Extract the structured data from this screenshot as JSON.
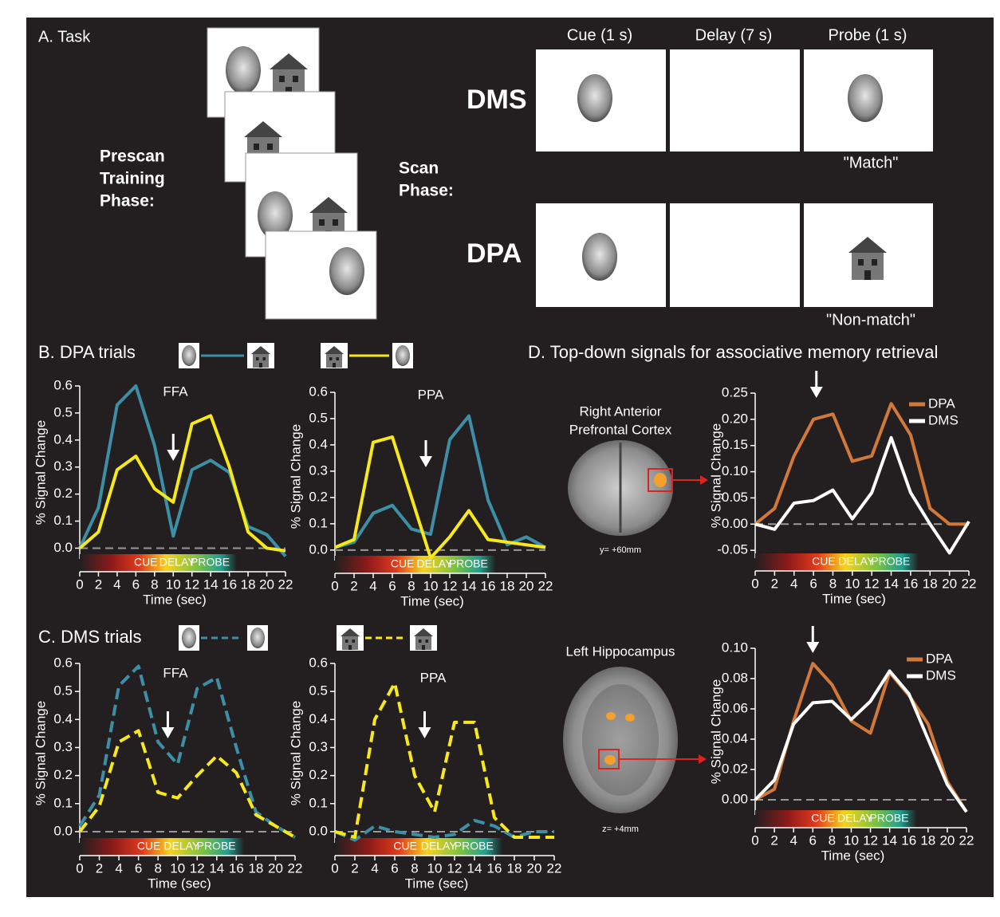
{
  "task": {
    "heading": "A. Task",
    "prescan_label": [
      "Prescan",
      "Training",
      "Phase:"
    ],
    "scan_label": [
      "Scan",
      "Phase:"
    ],
    "columns": [
      "Cue (1 s)",
      "Delay (7 s)",
      "Probe (1 s)"
    ],
    "rows": [
      {
        "label": "DMS",
        "response": "\"Match\""
      },
      {
        "label": "DPA",
        "response": "\"Non-match\""
      }
    ]
  },
  "panels": {
    "b": "B. DPA trials",
    "c": "C. DMS trials",
    "d": "D. Top-down signals for associative memory retrieval"
  },
  "chart_data": [
    {
      "type": "line",
      "title": "FFA",
      "y_label": "% Signal Change",
      "x_label": "Time (sec)",
      "phases": [
        "CUE",
        "DELAY",
        "PROBE"
      ],
      "line_style": "solid",
      "zero_line": true,
      "x": [
        0,
        2,
        4,
        6,
        8,
        10,
        12,
        14,
        16,
        18,
        20,
        22
      ],
      "xlim": [
        0,
        22
      ],
      "xticks": [
        0,
        2,
        4,
        6,
        8,
        10,
        12,
        14,
        16,
        18,
        20,
        22
      ],
      "ylim": [
        -0.04,
        0.6
      ],
      "yticks": [
        {
          "value": 0,
          "label": "0.0"
        },
        0.1,
        0.2,
        0.3,
        0.4,
        0.5,
        0.6
      ],
      "series": [
        {
          "color": "#3d8fa6",
          "values": [
            0,
            0.15,
            0.53,
            0.6,
            0.38,
            0.045,
            0.29,
            0.325,
            0.28,
            0.08,
            0.05,
            -0.03
          ]
        },
        {
          "color": "#f7e81c",
          "values": [
            0,
            0.06,
            0.29,
            0.34,
            0.22,
            0.17,
            0.46,
            0.49,
            0.3,
            0.06,
            0,
            -0.01
          ]
        }
      ]
    },
    {
      "type": "line",
      "title": "PPA",
      "y_label": "% Signal Change",
      "x_label": "Time (sec)",
      "phases": [
        "CUE",
        "DELAY",
        "PROBE"
      ],
      "line_style": "solid",
      "zero_line": true,
      "x": [
        0,
        2,
        4,
        6,
        8,
        10,
        12,
        14,
        16,
        18,
        20,
        22
      ],
      "xlim": [
        0,
        22
      ],
      "xticks": [
        0,
        2,
        4,
        6,
        8,
        10,
        12,
        14,
        16,
        18,
        20,
        22
      ],
      "ylim": [
        -0.04,
        0.6
      ],
      "yticks": [
        {
          "value": 0,
          "label": "0.0"
        },
        0.1,
        0.2,
        0.3,
        0.4,
        0.5,
        0.6
      ],
      "series": [
        {
          "color": "#3d8fa6",
          "values": [
            0.01,
            0.03,
            0.14,
            0.17,
            0.08,
            0.06,
            0.42,
            0.51,
            0.19,
            0.02,
            0.05,
            0.01
          ]
        },
        {
          "color": "#f7e81c",
          "values": [
            0.01,
            0.04,
            0.41,
            0.43,
            0.2,
            -0.03,
            0.05,
            0.15,
            0.04,
            0.03,
            0.02,
            0.01
          ]
        }
      ]
    },
    {
      "type": "line",
      "title": "FFA",
      "y_label": "% Signal Change",
      "x_label": "Time (sec)",
      "phases": [
        "CUE",
        "DELAY",
        "PROBE"
      ],
      "line_style": "dashed",
      "zero_line": true,
      "x": [
        0,
        2,
        4,
        6,
        8,
        10,
        12,
        14,
        16,
        18,
        20,
        22
      ],
      "xlim": [
        0,
        22
      ],
      "xticks": [
        0,
        2,
        4,
        6,
        8,
        10,
        12,
        14,
        16,
        18,
        20,
        22
      ],
      "ylim": [
        -0.04,
        0.6
      ],
      "yticks": [
        {
          "value": 0,
          "label": "0.0"
        },
        0.1,
        0.2,
        0.3,
        0.4,
        0.5,
        0.6
      ],
      "series": [
        {
          "color": "#3d8fa6",
          "values": [
            0.02,
            0.13,
            0.52,
            0.59,
            0.32,
            0.24,
            0.51,
            0.55,
            0.3,
            0.07,
            0.02,
            -0.02
          ]
        },
        {
          "color": "#f7e81c",
          "values": [
            0,
            0.09,
            0.32,
            0.36,
            0.14,
            0.12,
            0.2,
            0.27,
            0.21,
            0.06,
            0.02,
            -0.02
          ]
        }
      ]
    },
    {
      "type": "line",
      "title": "PPA",
      "y_label": "% Signal Change",
      "x_label": "Time (sec)",
      "phases": [
        "CUE",
        "DELAY",
        "PROBE"
      ],
      "line_style": "dashed",
      "zero_line": true,
      "x": [
        0,
        2,
        4,
        6,
        8,
        10,
        12,
        14,
        16,
        18,
        20,
        22
      ],
      "xlim": [
        0,
        22
      ],
      "xticks": [
        0,
        2,
        4,
        6,
        8,
        10,
        12,
        14,
        16,
        18,
        20,
        22
      ],
      "ylim": [
        -0.04,
        0.6
      ],
      "yticks": [
        {
          "value": 0,
          "label": "0.0"
        },
        0.1,
        0.2,
        0.3,
        0.4,
        0.5,
        0.6
      ],
      "series": [
        {
          "color": "#3d8fa6",
          "values": [
            0,
            -0.03,
            0.02,
            0,
            -0.01,
            -0.02,
            -0.01,
            0.04,
            0.02,
            -0.02,
            0,
            0
          ]
        },
        {
          "color": "#f7e81c",
          "values": [
            0,
            -0.02,
            0.4,
            0.53,
            0.2,
            0.07,
            0.39,
            0.39,
            0.05,
            -0.02,
            -0.02,
            -0.02
          ]
        }
      ]
    },
    {
      "type": "line",
      "region": [
        "Right Anterior",
        "Prefrontal Cortex"
      ],
      "coordinate": "y= +60mm",
      "y_label": "% Signal Change",
      "x_label": "Time (sec)",
      "phases": [
        "CUE",
        "DELAY",
        "PROBE"
      ],
      "line_style": "solid",
      "zero_line": true,
      "legend": "upper right",
      "x": [
        0,
        2,
        4,
        6,
        8,
        10,
        12,
        14,
        16,
        18,
        20,
        22
      ],
      "xlim": [
        0,
        22
      ],
      "xticks": [
        0,
        2,
        4,
        6,
        8,
        10,
        12,
        14,
        16,
        18,
        20,
        22
      ],
      "ylim": [
        -0.065,
        0.25
      ],
      "yticks": [
        {
          "value": -0.05,
          "label": "-0.05"
        },
        {
          "value": 0,
          "label": "0.00"
        },
        0.05,
        {
          "value": 0.1,
          "label": "0.10"
        },
        0.15,
        {
          "value": 0.2,
          "label": "0.20"
        },
        0.25
      ],
      "series": [
        {
          "name": "DPA",
          "color": "#d2793a",
          "values": [
            0,
            0.03,
            0.13,
            0.2,
            0.21,
            0.12,
            0.13,
            0.23,
            0.17,
            0.03,
            0,
            0
          ]
        },
        {
          "name": "DMS",
          "color": "#ffffff",
          "values": [
            0,
            -0.01,
            0.04,
            0.045,
            0.065,
            0.01,
            0.06,
            0.165,
            0.06,
            0,
            -0.055,
            0.005
          ]
        }
      ]
    },
    {
      "type": "line",
      "region": [
        "Left Hippocampus"
      ],
      "coordinate": "z= +4mm",
      "y_label": "% Signal Change",
      "x_label": "Time (sec)",
      "phases": [
        "CUE",
        "DELAY",
        "PROBE"
      ],
      "line_style": "solid",
      "zero_line": true,
      "legend": "upper right",
      "x": [
        0,
        2,
        4,
        6,
        8,
        10,
        12,
        14,
        16,
        18,
        20,
        22
      ],
      "xlim": [
        0,
        22
      ],
      "xticks": [
        0,
        2,
        4,
        6,
        8,
        10,
        12,
        14,
        16,
        18,
        20,
        22
      ],
      "ylim": [
        -0.01,
        0.1
      ],
      "yticks": [
        {
          "value": 0,
          "label": "0.00"
        },
        0.02,
        0.04,
        0.06,
        0.08,
        {
          "value": 0.1,
          "label": "0.10"
        }
      ],
      "series": [
        {
          "name": "DPA",
          "color": "#d2793a",
          "values": [
            0,
            0.007,
            0.052,
            0.09,
            0.076,
            0.052,
            0.044,
            0.084,
            0.069,
            0.05,
            0.012,
            -0.008
          ]
        },
        {
          "name": "DMS",
          "color": "#ffffff",
          "values": [
            0,
            0.013,
            0.05,
            0.064,
            0.065,
            0.053,
            0.065,
            0.085,
            0.07,
            0.04,
            0.01,
            -0.008
          ]
        }
      ]
    }
  ]
}
